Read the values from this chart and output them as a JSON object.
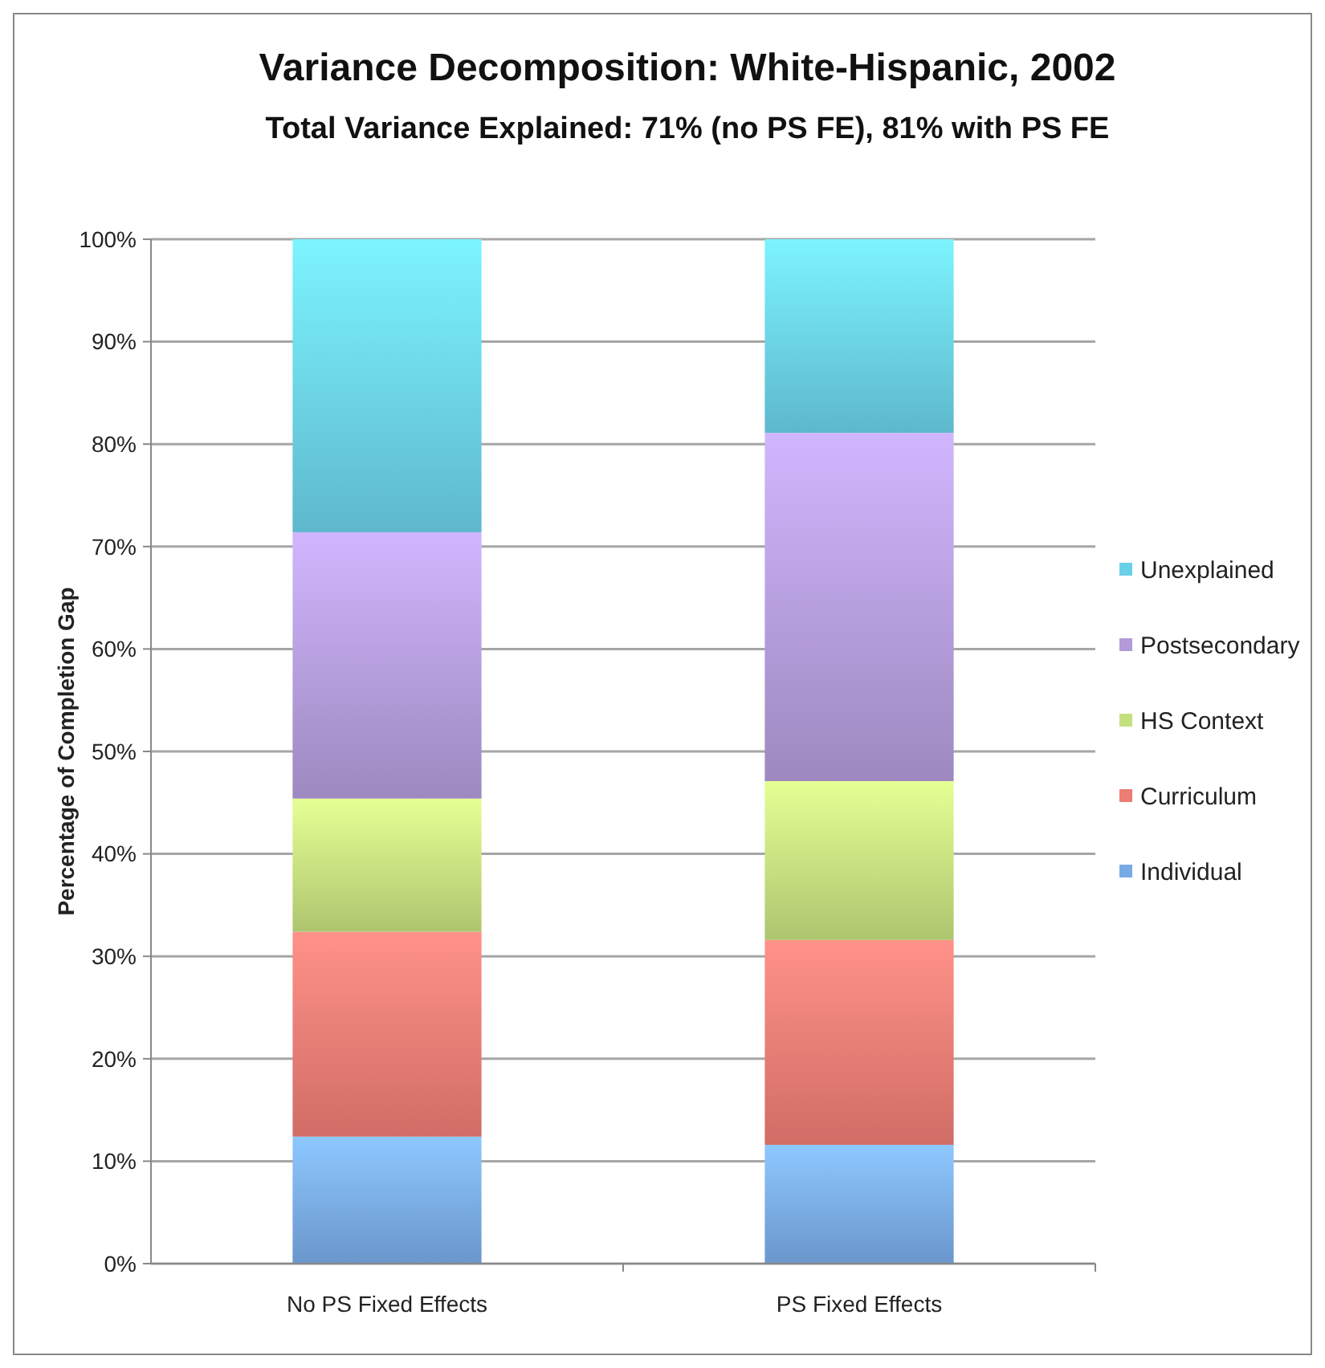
{
  "chart_data": {
    "type": "bar",
    "title": "Variance Decomposition: White-Hispanic, 2002",
    "subtitle": "Total Variance Explained: 71% (no PS FE), 81% with PS FE",
    "ylabel": "Percentage of Completion Gap",
    "categories": [
      "No PS Fixed Effects",
      "PS Fixed Effects"
    ],
    "stacked": true,
    "series": [
      {
        "name": "Individual",
        "color": "#78aae6",
        "values": [
          12.4,
          11.6
        ]
      },
      {
        "name": "Curriculum",
        "color": "#ec7c74",
        "values": [
          20.0,
          20.0
        ]
      },
      {
        "name": "HS Context",
        "color": "#c4e07e",
        "values": [
          13.0,
          15.5
        ]
      },
      {
        "name": "Postsecondary",
        "color": "#b29bd8",
        "values": [
          26.0,
          34.0
        ]
      },
      {
        "name": "Unexplained",
        "color": "#6ad0e8",
        "values": [
          28.6,
          18.9
        ]
      }
    ],
    "ylim": [
      0,
      100
    ],
    "yticks": [
      {
        "value": 0,
        "label": "0%"
      },
      {
        "value": 10,
        "label": "10%"
      },
      {
        "value": 20,
        "label": "20%"
      },
      {
        "value": 30,
        "label": "30%"
      },
      {
        "value": 40,
        "label": "40%"
      },
      {
        "value": 50,
        "label": "50%"
      },
      {
        "value": 60,
        "label": "60%"
      },
      {
        "value": 70,
        "label": "70%"
      },
      {
        "value": 80,
        "label": "80%"
      },
      {
        "value": 90,
        "label": "90%"
      },
      {
        "value": 100,
        "label": "100%"
      }
    ],
    "grid": "y",
    "legend": "right"
  }
}
